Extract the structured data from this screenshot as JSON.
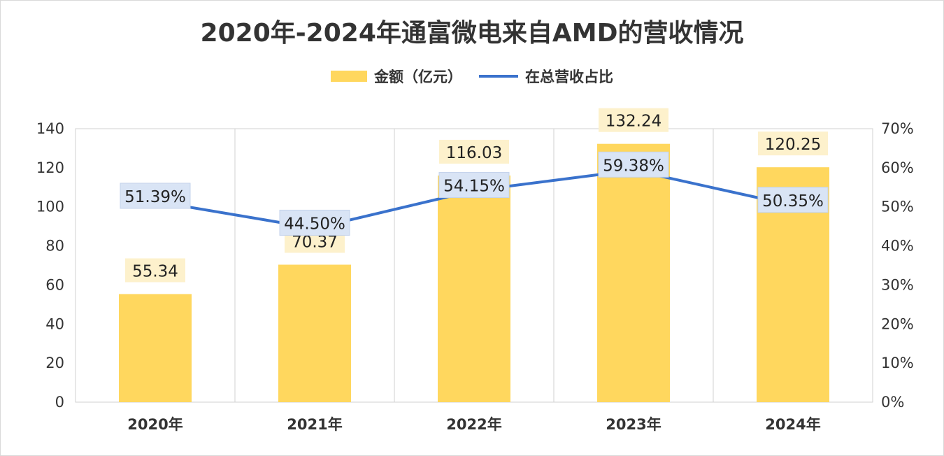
{
  "title": "2020年-2024年通富微电来自AMD的营收情况",
  "legend": {
    "bar_label": "金额（亿元）",
    "line_label": "在总营收占比"
  },
  "colors": {
    "bar": "#ffd75e",
    "line": "#3a72cc",
    "bar_label_bg": "#fdf1cc",
    "line_label_bg": "#d9e4f5",
    "grid": "#d0d0d0",
    "axis_text": "#333333"
  },
  "chart_data": {
    "type": "bar",
    "title": "2020年-2024年通富微电来自AMD的营收情况",
    "categories": [
      "2020年",
      "2021年",
      "2022年",
      "2023年",
      "2024年"
    ],
    "series": [
      {
        "name": "金额（亿元）",
        "type": "bar",
        "axis": "left",
        "values": [
          55.34,
          70.37,
          116.03,
          132.24,
          120.25
        ],
        "labels": [
          "55.34",
          "70.37",
          "116.03",
          "132.24",
          "120.25"
        ]
      },
      {
        "name": "在总营收占比",
        "type": "line",
        "axis": "right",
        "values": [
          51.39,
          44.5,
          54.15,
          59.38,
          50.35
        ],
        "labels": [
          "51.39%",
          "44.50%",
          "54.15%",
          "59.38%",
          "50.35%"
        ]
      }
    ],
    "y_left": {
      "min": 0,
      "max": 140,
      "ticks": [
        "0",
        "20",
        "40",
        "60",
        "80",
        "100",
        "120",
        "140"
      ]
    },
    "y_right": {
      "min": 0,
      "max": 70,
      "ticks": [
        "0%",
        "10%",
        "20%",
        "30%",
        "40%",
        "50%",
        "60%",
        "70%"
      ]
    },
    "grid": "vertical category separators",
    "legend_position": "top-center"
  }
}
